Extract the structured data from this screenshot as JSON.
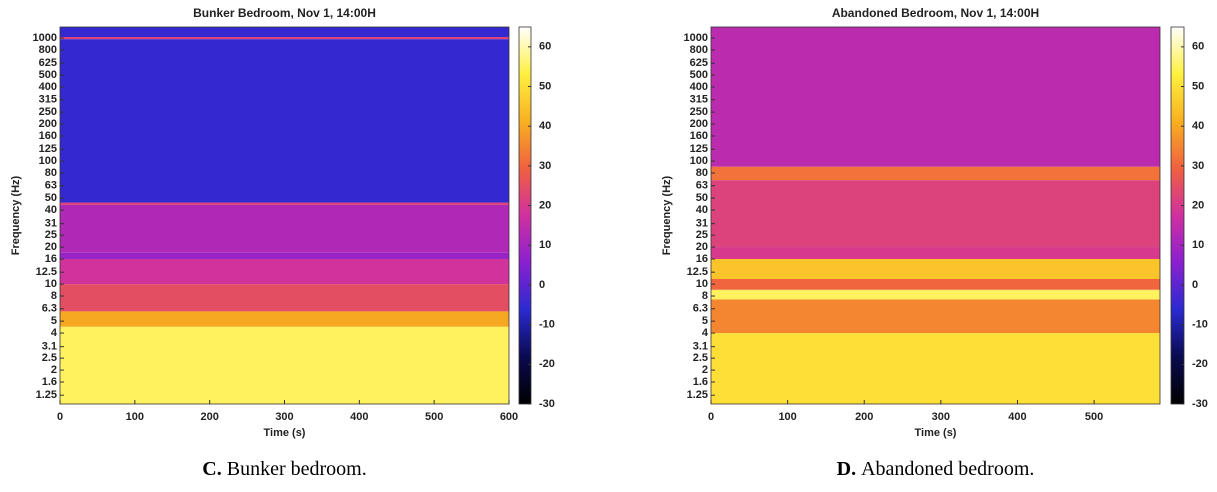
{
  "chart_data": [
    {
      "type": "heatmap",
      "title": "Bunker Bedroom, Nov 1, 14:00H",
      "xlabel": "Time (s)",
      "ylabel": "Frequency (Hz)",
      "xlim": [
        0,
        600
      ],
      "xticks": [
        0,
        100,
        200,
        300,
        400,
        500,
        600
      ],
      "ylim": [
        1.06,
        1230
      ],
      "log_y": true,
      "yticks": [
        1.25,
        1.6,
        2,
        2.5,
        3.1,
        4,
        5,
        6.3,
        8,
        10,
        12.5,
        16,
        20,
        25,
        31,
        40,
        50,
        63,
        80,
        100,
        125,
        160,
        200,
        250,
        315,
        400,
        500,
        625,
        800,
        1000
      ],
      "y_edges": [
        1.06,
        4.5,
        6,
        10,
        16,
        18,
        44,
        46,
        980,
        1020,
        1230
      ],
      "z": [
        55,
        40,
        25,
        18,
        8,
        12,
        22,
        -5,
        22,
        -5
      ],
      "clim": [
        -30,
        65
      ],
      "cticks": [
        -30,
        -20,
        -10,
        0,
        10,
        20,
        30,
        40,
        50,
        60
      ],
      "colormap": [
        "#000000",
        "#0a0a50",
        "#2a2ad0",
        "#8a20d0",
        "#d030a0",
        "#f06040",
        "#f8b020",
        "#fff040",
        "#ffffff"
      ]
    },
    {
      "type": "heatmap",
      "title": "Abandoned Bedroom, Nov 1, 14:00H",
      "xlabel": "Time (s)",
      "ylabel": "Frequency (Hz)",
      "xlim": [
        0,
        586
      ],
      "xticks": [
        0,
        100,
        200,
        300,
        400,
        500
      ],
      "ylim": [
        1.06,
        1230
      ],
      "log_y": true,
      "yticks": [
        1.25,
        1.6,
        2,
        2.5,
        3.1,
        4,
        5,
        6.3,
        8,
        10,
        12.5,
        16,
        20,
        25,
        31,
        40,
        50,
        63,
        80,
        100,
        125,
        160,
        200,
        250,
        315,
        400,
        500,
        625,
        800,
        1000
      ],
      "y_edges": [
        1.06,
        4,
        7.5,
        9,
        11,
        16,
        20,
        70,
        90,
        1230
      ],
      "z": [
        50,
        35,
        55,
        30,
        45,
        20,
        22,
        32,
        14
      ],
      "clim": [
        -30,
        65
      ],
      "cticks": [
        -30,
        -20,
        -10,
        0,
        10,
        20,
        30,
        40,
        50,
        60
      ],
      "colormap": [
        "#000000",
        "#0a0a50",
        "#2a2ad0",
        "#8a20d0",
        "#d030a0",
        "#f06040",
        "#f8b020",
        "#fff040",
        "#ffffff"
      ]
    }
  ],
  "captions": [
    {
      "label": "C.",
      "text": "Bunker bedroom."
    },
    {
      "label": "D.",
      "text": "Abandoned bedroom."
    }
  ]
}
